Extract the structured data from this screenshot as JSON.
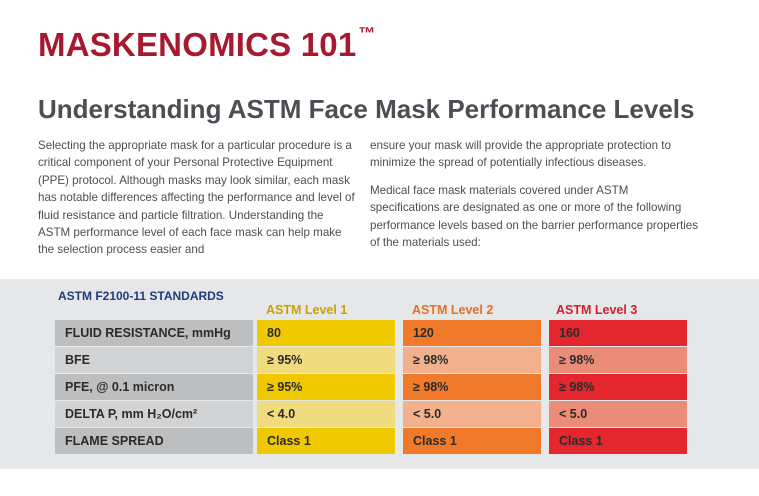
{
  "header": {
    "brand": "MASKENOMICS 101",
    "trademark": "™",
    "title": "Understanding ASTM Face Mask Performance Levels"
  },
  "intro": {
    "left_paragraph": "Selecting the appropriate mask for a particular procedure is a critical component of your Personal Protective Equipment (PPE) protocol. Although masks may look similar, each mask has notable differences affecting the performance and level of fluid resistance and particle filtration. Understanding the ASTM performance level of each face mask can help make the selection process easier and",
    "right_paragraph_1": "ensure your mask will provide the appropriate protection to minimize the spread of potentially infectious diseases.",
    "right_paragraph_2": "Medical face mask materials covered under ASTM specifications are designated as one or more of the following performance levels based on the barrier performance properties of the materials used:"
  },
  "standards": {
    "title": "ASTM F2100-11 STANDARDS",
    "levels": [
      "ASTM Level 1",
      "ASTM Level 2",
      "ASTM Level 3"
    ],
    "level_colors": [
      "#f0c800",
      "#f07a2a",
      "#e4262f"
    ],
    "rows": [
      {
        "label": "FLUID RESISTANCE, mmHg",
        "values": [
          "80",
          "120",
          "160"
        ]
      },
      {
        "label": "BFE",
        "values": [
          "≥ 95%",
          "≥ 98%",
          "≥ 98%"
        ]
      },
      {
        "label": "PFE, @ 0.1 micron",
        "values": [
          "≥ 95%",
          "≥ 98%",
          "≥ 98%"
        ]
      },
      {
        "label": "DELTA P, mm H₂O/cm²",
        "values": [
          "< 4.0",
          "< 5.0",
          "< 5.0"
        ]
      },
      {
        "label": "FLAME SPREAD",
        "values": [
          "Class 1",
          "Class 1",
          "Class 1"
        ]
      }
    ]
  }
}
